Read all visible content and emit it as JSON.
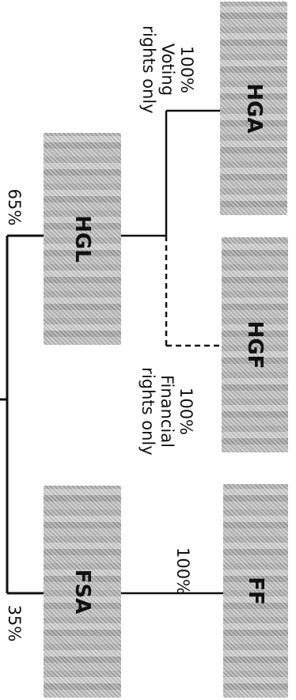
{
  "entities": {
    "hga": "HGA",
    "hgf": "HGF",
    "ff": "FF",
    "hgl": "HGL",
    "fsa": "FSA"
  },
  "ownership": {
    "hgl_share": "65%",
    "fsa_share": "35%",
    "hga_pct": "100%",
    "hga_note_1": "Voting",
    "hga_note_2": "rights only",
    "hgf_pct": "100%",
    "hgf_note_1": "Financial",
    "hgf_note_2": "rights only",
    "ff_pct": "100%"
  },
  "colors": {
    "line": "#111111",
    "text": "#111111"
  }
}
